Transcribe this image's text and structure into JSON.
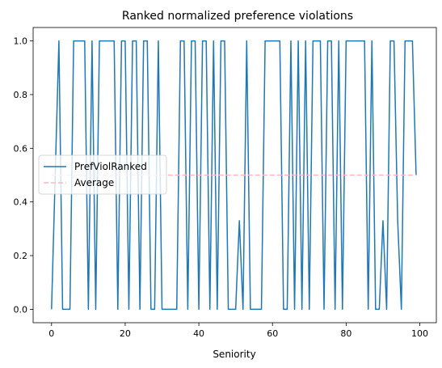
{
  "chart_data": {
    "type": "line",
    "title": "Ranked normalized preference violations",
    "xlabel": "Seniority",
    "ylabel": "",
    "xlim": [
      -5,
      104.5
    ],
    "ylim": [
      -0.05,
      1.05
    ],
    "x_ticks": [
      0,
      20,
      40,
      60,
      80,
      100
    ],
    "x_tick_labels": [
      "0",
      "20",
      "40",
      "60",
      "80",
      "100"
    ],
    "y_ticks": [
      0.0,
      0.2,
      0.4,
      0.6,
      0.8,
      1.0
    ],
    "y_tick_labels": [
      "0.0",
      "0.2",
      "0.4",
      "0.6",
      "0.8",
      "1.0"
    ],
    "grid": false,
    "legend_position": "center-left",
    "series": [
      {
        "name": "PrefViolRanked",
        "color": "#1f77b4",
        "style": "solid",
        "x": [
          0,
          1,
          2,
          3,
          4,
          5,
          6,
          7,
          8,
          9,
          10,
          11,
          12,
          13,
          14,
          15,
          16,
          17,
          18,
          19,
          20,
          21,
          22,
          23,
          24,
          25,
          26,
          27,
          28,
          29,
          30,
          31,
          32,
          33,
          34,
          35,
          36,
          37,
          38,
          39,
          40,
          41,
          42,
          43,
          44,
          45,
          46,
          47,
          48,
          49,
          50,
          51,
          52,
          53,
          54,
          55,
          56,
          57,
          58,
          59,
          60,
          61,
          62,
          63,
          64,
          65,
          66,
          67,
          68,
          69,
          70,
          71,
          72,
          73,
          74,
          75,
          76,
          77,
          78,
          79,
          80,
          81,
          82,
          83,
          84,
          85,
          86,
          87,
          88,
          89,
          90,
          91,
          92,
          93,
          94,
          95,
          96,
          97,
          98,
          99
        ],
        "values": [
          0,
          0.5,
          1,
          0,
          0,
          0,
          1,
          1,
          1,
          1,
          0,
          1,
          0,
          1,
          1,
          1,
          1,
          1,
          0,
          1,
          1,
          0,
          1,
          1,
          0,
          1,
          1,
          0,
          0,
          1,
          0,
          0,
          0,
          0,
          0,
          1,
          1,
          0,
          1,
          1,
          0,
          1,
          1,
          0,
          1,
          0,
          1,
          1,
          0,
          0,
          0,
          0.33,
          0,
          1,
          0,
          0,
          0,
          0,
          1,
          1,
          1,
          1,
          1,
          0,
          0,
          1,
          0,
          1,
          0,
          1,
          0,
          1,
          1,
          1,
          0,
          1,
          1,
          0,
          1,
          0,
          1,
          1,
          1,
          1,
          1,
          1,
          0,
          1,
          0,
          0,
          0.33,
          0,
          1,
          1,
          0.33,
          0,
          1,
          1,
          1,
          0.5
        ]
      },
      {
        "name": "Average",
        "color": "#ffb6c1",
        "style": "dashed",
        "x": [
          0,
          99
        ],
        "values": [
          0.5,
          0.5
        ]
      }
    ]
  }
}
